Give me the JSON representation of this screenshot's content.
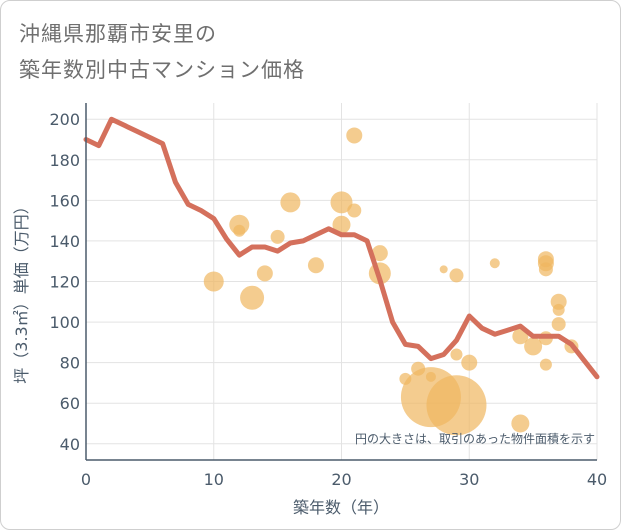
{
  "header": {
    "title_line1": "沖縄県那覇市安里の",
    "title_line2": "築年数別中古マンション価格"
  },
  "chart_data": {
    "type": "scatter",
    "xlabel": "築年数（年）",
    "ylabel": "坪（3.3㎡）単価（万円）",
    "xlim": [
      0,
      40
    ],
    "ylim": [
      32,
      208
    ],
    "xticks": [
      0,
      10,
      20,
      30,
      40
    ],
    "yticks": [
      40,
      60,
      80,
      100,
      120,
      140,
      160,
      180,
      200
    ],
    "annotation": "円の大きさは、取引のあった物件面積を示す",
    "colors": {
      "line": "#d4705c",
      "bubble": "#f0b660",
      "grid": "#e3e3e3",
      "axis": "#4b5b6b"
    },
    "line": {
      "x": [
        0,
        1,
        2,
        3,
        4,
        5,
        6,
        7,
        8,
        9,
        10,
        11,
        12,
        13,
        14,
        15,
        16,
        17,
        18,
        19,
        20,
        21,
        22,
        23,
        24,
        25,
        26,
        27,
        28,
        29,
        30,
        31,
        32,
        33,
        34,
        35,
        36,
        37,
        38,
        39,
        40
      ],
      "y": [
        190,
        187,
        200,
        197,
        194,
        191,
        188,
        169,
        158,
        155,
        151,
        141,
        133,
        137,
        137,
        135,
        139,
        140,
        143,
        146,
        143,
        143,
        140,
        121,
        100,
        89,
        88,
        82,
        84,
        91,
        103,
        97,
        94,
        96,
        98,
        93,
        93,
        93,
        89,
        81,
        73
      ]
    },
    "bubbles": [
      {
        "x": 10,
        "y": 120,
        "r": 10
      },
      {
        "x": 12,
        "y": 148,
        "r": 10
      },
      {
        "x": 12,
        "y": 145,
        "r": 6
      },
      {
        "x": 13,
        "y": 112,
        "r": 12
      },
      {
        "x": 14,
        "y": 124,
        "r": 8
      },
      {
        "x": 15,
        "y": 142,
        "r": 7
      },
      {
        "x": 16,
        "y": 159,
        "r": 10
      },
      {
        "x": 18,
        "y": 128,
        "r": 8
      },
      {
        "x": 20,
        "y": 159,
        "r": 11
      },
      {
        "x": 20,
        "y": 148,
        "r": 9
      },
      {
        "x": 21,
        "y": 192,
        "r": 8
      },
      {
        "x": 21,
        "y": 155,
        "r": 7
      },
      {
        "x": 23,
        "y": 134,
        "r": 8
      },
      {
        "x": 23,
        "y": 124,
        "r": 11
      },
      {
        "x": 25,
        "y": 72,
        "r": 6
      },
      {
        "x": 26,
        "y": 77,
        "r": 7
      },
      {
        "x": 27,
        "y": 63,
        "r": 30
      },
      {
        "x": 27,
        "y": 73,
        "r": 5
      },
      {
        "x": 28,
        "y": 126,
        "r": 4
      },
      {
        "x": 29,
        "y": 123,
        "r": 7
      },
      {
        "x": 29,
        "y": 84,
        "r": 6
      },
      {
        "x": 29,
        "y": 59,
        "r": 30
      },
      {
        "x": 30,
        "y": 80,
        "r": 8
      },
      {
        "x": 32,
        "y": 129,
        "r": 5
      },
      {
        "x": 34,
        "y": 93,
        "r": 8
      },
      {
        "x": 34,
        "y": 50,
        "r": 9
      },
      {
        "x": 35,
        "y": 88,
        "r": 9
      },
      {
        "x": 36,
        "y": 131,
        "r": 8
      },
      {
        "x": 36,
        "y": 129,
        "r": 8
      },
      {
        "x": 36,
        "y": 126,
        "r": 7
      },
      {
        "x": 36,
        "y": 92,
        "r": 7
      },
      {
        "x": 36,
        "y": 79,
        "r": 6
      },
      {
        "x": 37,
        "y": 110,
        "r": 8
      },
      {
        "x": 37,
        "y": 106,
        "r": 6
      },
      {
        "x": 37,
        "y": 99,
        "r": 7
      },
      {
        "x": 38,
        "y": 88,
        "r": 7
      }
    ]
  }
}
